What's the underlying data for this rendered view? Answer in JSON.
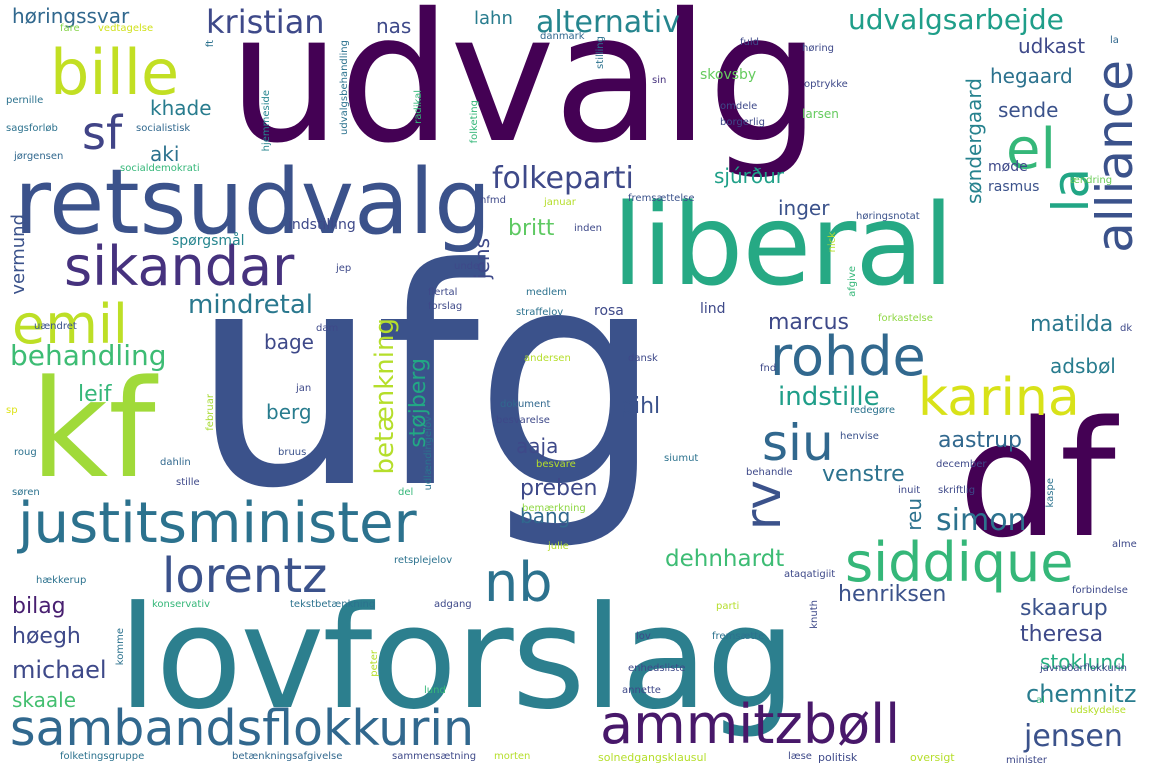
{
  "words": [
    {
      "text": "ufg",
      "color": "#3b528b"
    },
    {
      "text": "udvalg",
      "color": "#440154"
    },
    {
      "text": "lovforslag",
      "color": "#2c7f8e"
    },
    {
      "text": "liberal",
      "color": "#26a984"
    },
    {
      "text": "retsudvalg",
      "color": "#3b528b"
    },
    {
      "text": "df",
      "color": "#440154"
    },
    {
      "text": "kf",
      "color": "#a0da39"
    },
    {
      "text": "justitsminister",
      "color": "#2c728e"
    },
    {
      "text": "sambandsflokkurin",
      "color": "#31688e"
    },
    {
      "text": "alliance",
      "color": "#3b528b"
    },
    {
      "text": "sikandar",
      "color": "#46327e"
    },
    {
      "text": "ammitzbøll",
      "color": "#48186a"
    },
    {
      "text": "karina",
      "color": "#d8e219"
    },
    {
      "text": "rohde",
      "color": "#31688e"
    },
    {
      "text": "siddique",
      "color": "#35b779"
    },
    {
      "text": "lorentz",
      "color": "#3b528b"
    },
    {
      "text": "bille",
      "color": "#c2df23"
    },
    {
      "text": "emil",
      "color": "#bddf26"
    },
    {
      "text": "nb",
      "color": "#2c728e"
    },
    {
      "text": "siu",
      "color": "#31688e"
    },
    {
      "text": "rv",
      "color": "#3b528b"
    },
    {
      "text": "el",
      "color": "#35b779"
    },
    {
      "text": "la",
      "color": "#21a685"
    },
    {
      "text": "sf",
      "color": "#414487"
    },
    {
      "text": "alternativ",
      "color": "#25858e"
    },
    {
      "text": "kristian",
      "color": "#3e4989"
    },
    {
      "text": "folkeparti",
      "color": "#3e4989"
    },
    {
      "text": "udvalgsarbejde",
      "color": "#1f9e89"
    },
    {
      "text": "behandling",
      "color": "#3dbc74"
    },
    {
      "text": "mindretal",
      "color": "#2a788e"
    },
    {
      "text": "simon",
      "color": "#2c728e"
    },
    {
      "text": "jensen",
      "color": "#3b528b"
    },
    {
      "text": "betænkning",
      "color": "#b5de2b"
    },
    {
      "text": "chemnitz",
      "color": "#287c8e"
    },
    {
      "text": "michael",
      "color": "#3e4989"
    },
    {
      "text": "indstille",
      "color": "#1f9e89"
    },
    {
      "text": "dehnhardt",
      "color": "#3dbc74"
    },
    {
      "text": "marcus",
      "color": "#3e4989"
    },
    {
      "text": "henriksen",
      "color": "#3b528b"
    },
    {
      "text": "skaarup",
      "color": "#3b528b"
    },
    {
      "text": "theresa",
      "color": "#3e4989"
    },
    {
      "text": "matilda",
      "color": "#2a788e"
    },
    {
      "text": "venstre",
      "color": "#2c728e"
    },
    {
      "text": "aastrup",
      "color": "#31688e"
    },
    {
      "text": "pihl",
      "color": "#3b528b"
    },
    {
      "text": "leif",
      "color": "#35b779"
    },
    {
      "text": "bilag",
      "color": "#481f70"
    },
    {
      "text": "høegh",
      "color": "#3e4989"
    },
    {
      "text": "skaale",
      "color": "#44bf70"
    },
    {
      "text": "støjberg",
      "color": "#22a884"
    },
    {
      "text": "preben",
      "color": "#3e4989"
    },
    {
      "text": "britt",
      "color": "#5ec962"
    },
    {
      "text": "inger",
      "color": "#3b528b"
    },
    {
      "text": "jens",
      "color": "#3e4989"
    },
    {
      "text": "sjúrður",
      "color": "#1fa088"
    },
    {
      "text": "søndergaard",
      "color": "#26828e"
    },
    {
      "text": "hegaard",
      "color": "#2c728e"
    },
    {
      "text": "udkast",
      "color": "#3e4989"
    },
    {
      "text": "sende",
      "color": "#3b528b"
    },
    {
      "text": "berg",
      "color": "#287c8e"
    },
    {
      "text": "bage",
      "color": "#3e4989"
    },
    {
      "text": "aaja",
      "color": "#3e4989"
    },
    {
      "text": "bang",
      "color": "#31688e"
    },
    {
      "text": "adsbøl",
      "color": "#287c8e"
    },
    {
      "text": "reu",
      "color": "#2c728e"
    },
    {
      "text": "stoklund",
      "color": "#26ad81"
    },
    {
      "text": "khade",
      "color": "#287c8e"
    },
    {
      "text": "aki",
      "color": "#2c728e"
    },
    {
      "text": "høringssvar",
      "color": "#31688e"
    },
    {
      "text": "nas",
      "color": "#3e4989"
    },
    {
      "text": "lahn",
      "color": "#287c8e"
    },
    {
      "text": "vermund",
      "color": "#3b528b"
    },
    {
      "text": "indstilling",
      "color": "#3e4989"
    },
    {
      "text": "spørgsmål",
      "color": "#25858e"
    },
    {
      "text": "rasmus",
      "color": "#3b528b"
    },
    {
      "text": "møde",
      "color": "#3e4989"
    },
    {
      "text": "rosa",
      "color": "#3e4989"
    },
    {
      "text": "lind",
      "color": "#3e4989"
    },
    {
      "text": "skovsby",
      "color": "#65cb5e"
    },
    {
      "text": "larsen",
      "color": "#65cb5e"
    },
    {
      "text": "fare",
      "color": "#86d549"
    },
    {
      "text": "vedtagelse",
      "color": "#d0e11c"
    },
    {
      "text": "ft",
      "color": "#2c728e"
    },
    {
      "text": "danmark",
      "color": "#31688e"
    },
    {
      "text": "stilling",
      "color": "#2c728e"
    },
    {
      "text": "fuld",
      "color": "#3e4989"
    },
    {
      "text": "høring",
      "color": "#3e4989"
    },
    {
      "text": "la",
      "color": "#31688e"
    },
    {
      "text": "pernille",
      "color": "#2c728e"
    },
    {
      "text": "hjemmeside",
      "color": "#25858e"
    },
    {
      "text": "udvalgsbehandling",
      "color": "#2c728e"
    },
    {
      "text": "radikal",
      "color": "#35b779"
    },
    {
      "text": "sin",
      "color": "#46327e"
    },
    {
      "text": "optrykke",
      "color": "#3e4989"
    },
    {
      "text": "omdele",
      "color": "#3e4989"
    },
    {
      "text": "borgerlig",
      "color": "#3e4989"
    },
    {
      "text": "sagsforløb",
      "color": "#2c728e"
    },
    {
      "text": "socialistisk",
      "color": "#31688e"
    },
    {
      "text": "jørgensen",
      "color": "#31688e"
    },
    {
      "text": "socialdemokrati",
      "color": "#35b779"
    },
    {
      "text": "folketing",
      "color": "#35b779"
    },
    {
      "text": "fremsættelse",
      "color": "#3b528b"
    },
    {
      "text": "ændring",
      "color": "#6ccd5a"
    },
    {
      "text": "nfmd",
      "color": "#3e4989"
    },
    {
      "text": "januar",
      "color": "#b5de2b"
    },
    {
      "text": "inden",
      "color": "#3e4989"
    },
    {
      "text": "høringsnotat",
      "color": "#3b528b"
    },
    {
      "text": "jep",
      "color": "#3e4989"
    },
    {
      "text": "unde",
      "color": "#3e4989"
    },
    {
      "text": "flertal",
      "color": "#3e4989"
    },
    {
      "text": "forslag",
      "color": "#3e4989"
    },
    {
      "text": "medlem",
      "color": "#2c728e"
    },
    {
      "text": "straffelov",
      "color": "#2c728e"
    },
    {
      "text": "nick",
      "color": "#b5de2b"
    },
    {
      "text": "afgive",
      "color": "#35b779"
    },
    {
      "text": "uændret",
      "color": "#3b528b"
    },
    {
      "text": "dam",
      "color": "#3e4989"
    },
    {
      "text": "forkastelse",
      "color": "#8fd744"
    },
    {
      "text": "dk",
      "color": "#3e4989"
    },
    {
      "text": "andersen",
      "color": "#b5de2b"
    },
    {
      "text": "dansk",
      "color": "#3e4989"
    },
    {
      "text": "fnd",
      "color": "#3e4989"
    },
    {
      "text": "jan",
      "color": "#3e4989"
    },
    {
      "text": "sp",
      "color": "#dde318"
    },
    {
      "text": "februar",
      "color": "#a8db34"
    },
    {
      "text": "udlændingelov",
      "color": "#2c728e"
    },
    {
      "text": "dokument",
      "color": "#31688e"
    },
    {
      "text": "besvarelse",
      "color": "#3e4989"
    },
    {
      "text": "redegøre",
      "color": "#2c728e"
    },
    {
      "text": "henvise",
      "color": "#3b528b"
    },
    {
      "text": "roug",
      "color": "#2c728e"
    },
    {
      "text": "dahlin",
      "color": "#31688e"
    },
    {
      "text": "bruus",
      "color": "#3b528b"
    },
    {
      "text": "stille",
      "color": "#3e4989"
    },
    {
      "text": "besvare",
      "color": "#b5de2b"
    },
    {
      "text": "siumut",
      "color": "#2c728e"
    },
    {
      "text": "behandle",
      "color": "#3e4989"
    },
    {
      "text": "december",
      "color": "#3e4989"
    },
    {
      "text": "inuit",
      "color": "#3e4989"
    },
    {
      "text": "skriftlig",
      "color": "#3e4989"
    },
    {
      "text": "søren",
      "color": "#2c728e"
    },
    {
      "text": "del",
      "color": "#35b779"
    },
    {
      "text": "bemærkning",
      "color": "#8fd744"
    },
    {
      "text": "kaspe",
      "color": "#2c728e"
    },
    {
      "text": "julie",
      "color": "#b5de2b"
    },
    {
      "text": "alme",
      "color": "#3e4989"
    },
    {
      "text": "hækkerup",
      "color": "#2c728e"
    },
    {
      "text": "retsplejelov",
      "color": "#2c728e"
    },
    {
      "text": "ataqatigiit",
      "color": "#3e4989"
    },
    {
      "text": "forbindelse",
      "color": "#3e4989"
    },
    {
      "text": "konservativ",
      "color": "#35b779"
    },
    {
      "text": "tekstbetænkning",
      "color": "#2c728e"
    },
    {
      "text": "adgang",
      "color": "#3e4989"
    },
    {
      "text": "parti",
      "color": "#b5de2b"
    },
    {
      "text": "knuth",
      "color": "#3e4989"
    },
    {
      "text": "komme",
      "color": "#2c728e"
    },
    {
      "text": "lov",
      "color": "#3e4989"
    },
    {
      "text": "fremsætte",
      "color": "#2c728e"
    },
    {
      "text": "peter",
      "color": "#b5de2b"
    },
    {
      "text": "enhedsliste",
      "color": "#3e4989"
    },
    {
      "text": "javnaðarflokkurin",
      "color": "#3e4989"
    },
    {
      "text": "lund",
      "color": "#35b779"
    },
    {
      "text": "annette",
      "color": "#3e4989"
    },
    {
      "text": "al",
      "color": "#35b779"
    },
    {
      "text": "udskydelse",
      "color": "#b5de2b"
    },
    {
      "text": "folketingsgruppe",
      "color": "#2c728e"
    },
    {
      "text": "betænkningsafgivelse",
      "color": "#31688e"
    },
    {
      "text": "sammensætning",
      "color": "#3e4989"
    },
    {
      "text": "morten",
      "color": "#b5de2b"
    },
    {
      "text": "solnedgangsklausul",
      "color": "#b5de2b"
    },
    {
      "text": "læse",
      "color": "#3e4989"
    },
    {
      "text": "politisk",
      "color": "#3e4989"
    },
    {
      "text": "oversigt",
      "color": "#b5de2b"
    },
    {
      "text": "minister",
      "color": "#3e4989"
    }
  ]
}
